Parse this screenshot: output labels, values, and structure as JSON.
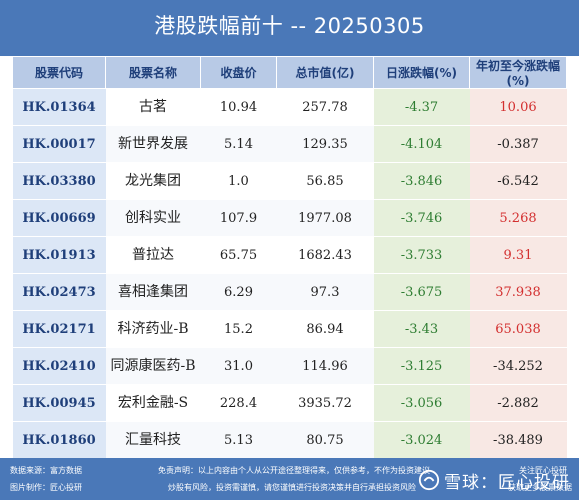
{
  "title": "港股跌幅前十 -- 20250305",
  "columns": [
    "股票代码",
    "股票名称",
    "收盘价",
    "总市值(亿)",
    "日涨跌幅(%)",
    "年初至今涨跌幅(%)"
  ],
  "rows": [
    {
      "code": "HK.01364",
      "name": "古茗",
      "price": "10.94",
      "cap": "257.78",
      "daily": "-4.37",
      "ytd": "10.06"
    },
    {
      "code": "HK.00017",
      "name": "新世界发展",
      "price": "5.14",
      "cap": "129.35",
      "daily": "-4.104",
      "ytd": "-0.387"
    },
    {
      "code": "HK.03380",
      "name": "龙光集团",
      "price": "1.0",
      "cap": "56.85",
      "daily": "-3.846",
      "ytd": "-6.542"
    },
    {
      "code": "HK.00669",
      "name": "创科实业",
      "price": "107.9",
      "cap": "1977.08",
      "daily": "-3.746",
      "ytd": "5.268"
    },
    {
      "code": "HK.01913",
      "name": "普拉达",
      "price": "65.75",
      "cap": "1682.43",
      "daily": "-3.733",
      "ytd": "9.31"
    },
    {
      "code": "HK.02473",
      "name": "喜相逢集团",
      "price": "6.29",
      "cap": "97.3",
      "daily": "-3.675",
      "ytd": "37.938"
    },
    {
      "code": "HK.02171",
      "name": "科济药业-B",
      "price": "15.2",
      "cap": "86.94",
      "daily": "-3.43",
      "ytd": "65.038"
    },
    {
      "code": "HK.02410",
      "name": "同源康医药-B",
      "price": "31.0",
      "cap": "114.96",
      "daily": "-3.125",
      "ytd": "-34.252"
    },
    {
      "code": "HK.00945",
      "name": "宏利金融-S",
      "price": "228.4",
      "cap": "3935.72",
      "daily": "-3.056",
      "ytd": "-2.882"
    },
    {
      "code": "HK.01860",
      "name": "汇量科技",
      "price": "5.13",
      "cap": "80.75",
      "daily": "-3.024",
      "ytd": "-38.489"
    }
  ],
  "footer": {
    "source": "数据来源：富方数据",
    "made_by": "图片制作：匠心投研",
    "disclaimer_1": "免责声明：以上内容由个人从公开途径整理得来，仅供参考，不作为投资建议",
    "disclaimer_2": "炒股有风险，投资需谨慎，请您谨慎进行投资决策并自行承担投资风险",
    "follow": "关注匠心投研",
    "follow_2": "获取更多股票数据",
    "watermark": "雪球：匠心投研"
  },
  "colors": {
    "banner": "#4a78b8",
    "header_bg": "#b8cae6",
    "daily_bg": "#e6f0db",
    "ytd_bg": "#f8e8e4",
    "negative": "#2e7d32",
    "positive": "#d32f2f"
  }
}
